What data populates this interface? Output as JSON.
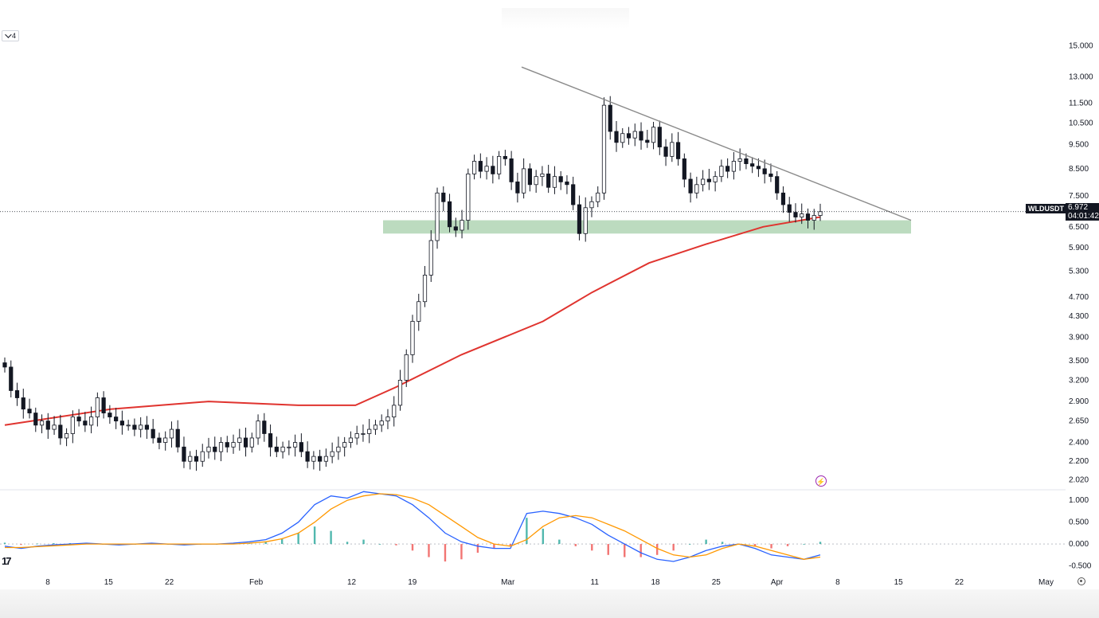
{
  "window": {
    "legend_count": "4"
  },
  "symbol": {
    "name": "WLDUSDT",
    "price": "6.972",
    "countdown": "04:01:42"
  },
  "colors": {
    "up": "#26a69a",
    "down": "#ef5350",
    "candle": "#131722",
    "ma": "#e0342f",
    "trendline": "#8a8a8a",
    "zone": "#a5cfa9",
    "macd": "#2962ff",
    "signal": "#ff9800",
    "bolt": "#9c27b0"
  },
  "icons": {
    "legend": "chevron-down-icon",
    "alert": "lightning-icon",
    "settings": "gear-icon",
    "logo": "tradingview-logo"
  },
  "chart_data": [
    {
      "type": "candlestick",
      "scale": "log",
      "x_tick_labels": [
        "8",
        "15",
        "22",
        "Feb",
        "12",
        "19",
        "Mar",
        "11",
        "18",
        "25",
        "Apr",
        "8",
        "15",
        "22",
        "May"
      ],
      "y_tick_labels": [
        "15.000",
        "13.000",
        "11.500",
        "10.500",
        "9.500",
        "8.500",
        "7.500",
        "6.500",
        "5.900",
        "5.300",
        "4.700",
        "4.300",
        "3.900",
        "3.500",
        "3.200",
        "2.900",
        "2.650",
        "2.400",
        "2.200",
        "2.020"
      ],
      "y_ticks": [
        15.0,
        13.0,
        11.5,
        10.5,
        9.5,
        8.5,
        7.5,
        6.5,
        5.9,
        5.3,
        4.7,
        4.3,
        3.9,
        3.5,
        3.2,
        2.9,
        2.65,
        2.4,
        2.2,
        2.02
      ],
      "ylim": [
        1.95,
        16.0
      ],
      "last_price": 6.972,
      "close_series": [
        3.4,
        3.05,
        2.95,
        2.8,
        2.75,
        2.6,
        2.65,
        2.55,
        2.6,
        2.45,
        2.5,
        2.7,
        2.65,
        2.6,
        2.7,
        2.95,
        2.75,
        2.7,
        2.65,
        2.6,
        2.6,
        2.55,
        2.6,
        2.55,
        2.45,
        2.4,
        2.45,
        2.55,
        2.35,
        2.2,
        2.25,
        2.2,
        2.3,
        2.35,
        2.3,
        2.4,
        2.35,
        2.4,
        2.45,
        2.35,
        2.45,
        2.65,
        2.5,
        2.35,
        2.3,
        2.35,
        2.35,
        2.4,
        2.3,
        2.2,
        2.25,
        2.2,
        2.25,
        2.3,
        2.35,
        2.4,
        2.45,
        2.5,
        2.5,
        2.55,
        2.6,
        2.65,
        2.7,
        2.85,
        3.2,
        3.6,
        4.2,
        4.6,
        5.2,
        6.1,
        7.6,
        7.3,
        6.5,
        6.4,
        6.7,
        8.3,
        8.8,
        8.4,
        8.6,
        8.3,
        9.0,
        8.9,
        8.0,
        7.6,
        8.5,
        7.9,
        8.2,
        8.3,
        7.8,
        8.2,
        8.0,
        7.9,
        7.2,
        6.3,
        7.1,
        7.3,
        7.6,
        11.4,
        10.1,
        9.6,
        10.0,
        9.8,
        10.1,
        9.7,
        9.6,
        10.3,
        9.4,
        9.0,
        9.6,
        8.9,
        8.1,
        7.6,
        7.9,
        8.1,
        8.0,
        8.2,
        8.6,
        8.4,
        8.8,
        8.9,
        8.7,
        8.6,
        8.5,
        8.3,
        8.2,
        7.6,
        7.2,
        6.95,
        6.8,
        6.9,
        6.7,
        6.85,
        6.972
      ],
      "moving_average": [
        {
          "t": 0,
          "v": 2.6
        },
        {
          "t": 0.13,
          "v": 2.8
        },
        {
          "t": 0.25,
          "v": 2.9
        },
        {
          "t": 0.36,
          "v": 2.85
        },
        {
          "t": 0.43,
          "v": 2.85
        },
        {
          "t": 0.48,
          "v": 3.1
        },
        {
          "t": 0.56,
          "v": 3.6
        },
        {
          "t": 0.66,
          "v": 4.2
        },
        {
          "t": 0.72,
          "v": 4.8
        },
        {
          "t": 0.79,
          "v": 5.5
        },
        {
          "t": 0.86,
          "v": 6.0
        },
        {
          "t": 0.93,
          "v": 6.5
        },
        {
          "t": 1.0,
          "v": 6.8
        }
      ],
      "trendline": [
        {
          "price": 13.6,
          "at": "late Feb"
        },
        {
          "price": 6.7,
          "at": "mid Apr"
        }
      ],
      "support_zone": [
        6.3,
        6.7
      ]
    },
    {
      "type": "macd",
      "y_tick_labels": [
        "1.000",
        "0.500",
        "0.000",
        "-0.500"
      ],
      "y_ticks": [
        1.0,
        0.5,
        0.0,
        -0.5
      ],
      "ylim": [
        -0.6,
        1.15
      ],
      "macd": [
        -0.05,
        -0.1,
        -0.05,
        -0.02,
        0.0,
        0.02,
        0.0,
        -0.02,
        0.0,
        0.02,
        0.0,
        -0.02,
        0.0,
        0.0,
        0.02,
        0.05,
        0.1,
        0.25,
        0.5,
        0.9,
        1.1,
        1.05,
        1.2,
        1.15,
        1.1,
        0.9,
        0.6,
        0.25,
        0.05,
        -0.05,
        -0.1,
        -0.1,
        0.7,
        0.75,
        0.7,
        0.6,
        0.45,
        0.2,
        0.0,
        -0.2,
        -0.35,
        -0.4,
        -0.3,
        -0.15,
        -0.05,
        0.0,
        -0.1,
        -0.25,
        -0.3,
        -0.35,
        -0.25
      ],
      "signal": [
        -0.08,
        -0.08,
        -0.06,
        -0.04,
        -0.02,
        0.0,
        0.0,
        0.0,
        0.0,
        0.0,
        0.0,
        0.0,
        0.0,
        0.0,
        0.0,
        0.02,
        0.05,
        0.12,
        0.25,
        0.5,
        0.8,
        1.0,
        1.1,
        1.15,
        1.13,
        1.05,
        0.9,
        0.65,
        0.4,
        0.15,
        0.0,
        -0.05,
        0.1,
        0.4,
        0.6,
        0.65,
        0.6,
        0.45,
        0.3,
        0.1,
        -0.1,
        -0.25,
        -0.3,
        -0.25,
        -0.1,
        0.0,
        -0.05,
        -0.15,
        -0.25,
        -0.35,
        -0.3
      ],
      "histogram": [
        0.03,
        -0.02,
        0.01,
        0.02,
        0.02,
        0.02,
        0.0,
        -0.02,
        0.0,
        0.02,
        0.0,
        -0.02,
        0.0,
        0.0,
        0.02,
        0.03,
        0.05,
        0.13,
        0.25,
        0.4,
        0.3,
        0.05,
        0.1,
        0.0,
        -0.03,
        -0.15,
        -0.3,
        -0.4,
        -0.35,
        -0.2,
        -0.1,
        -0.05,
        0.6,
        0.35,
        0.1,
        -0.05,
        -0.15,
        -0.25,
        -0.3,
        -0.3,
        -0.25,
        -0.15,
        0.0,
        0.1,
        0.05,
        0.0,
        -0.05,
        -0.1,
        -0.05,
        0.0,
        0.05
      ]
    }
  ]
}
